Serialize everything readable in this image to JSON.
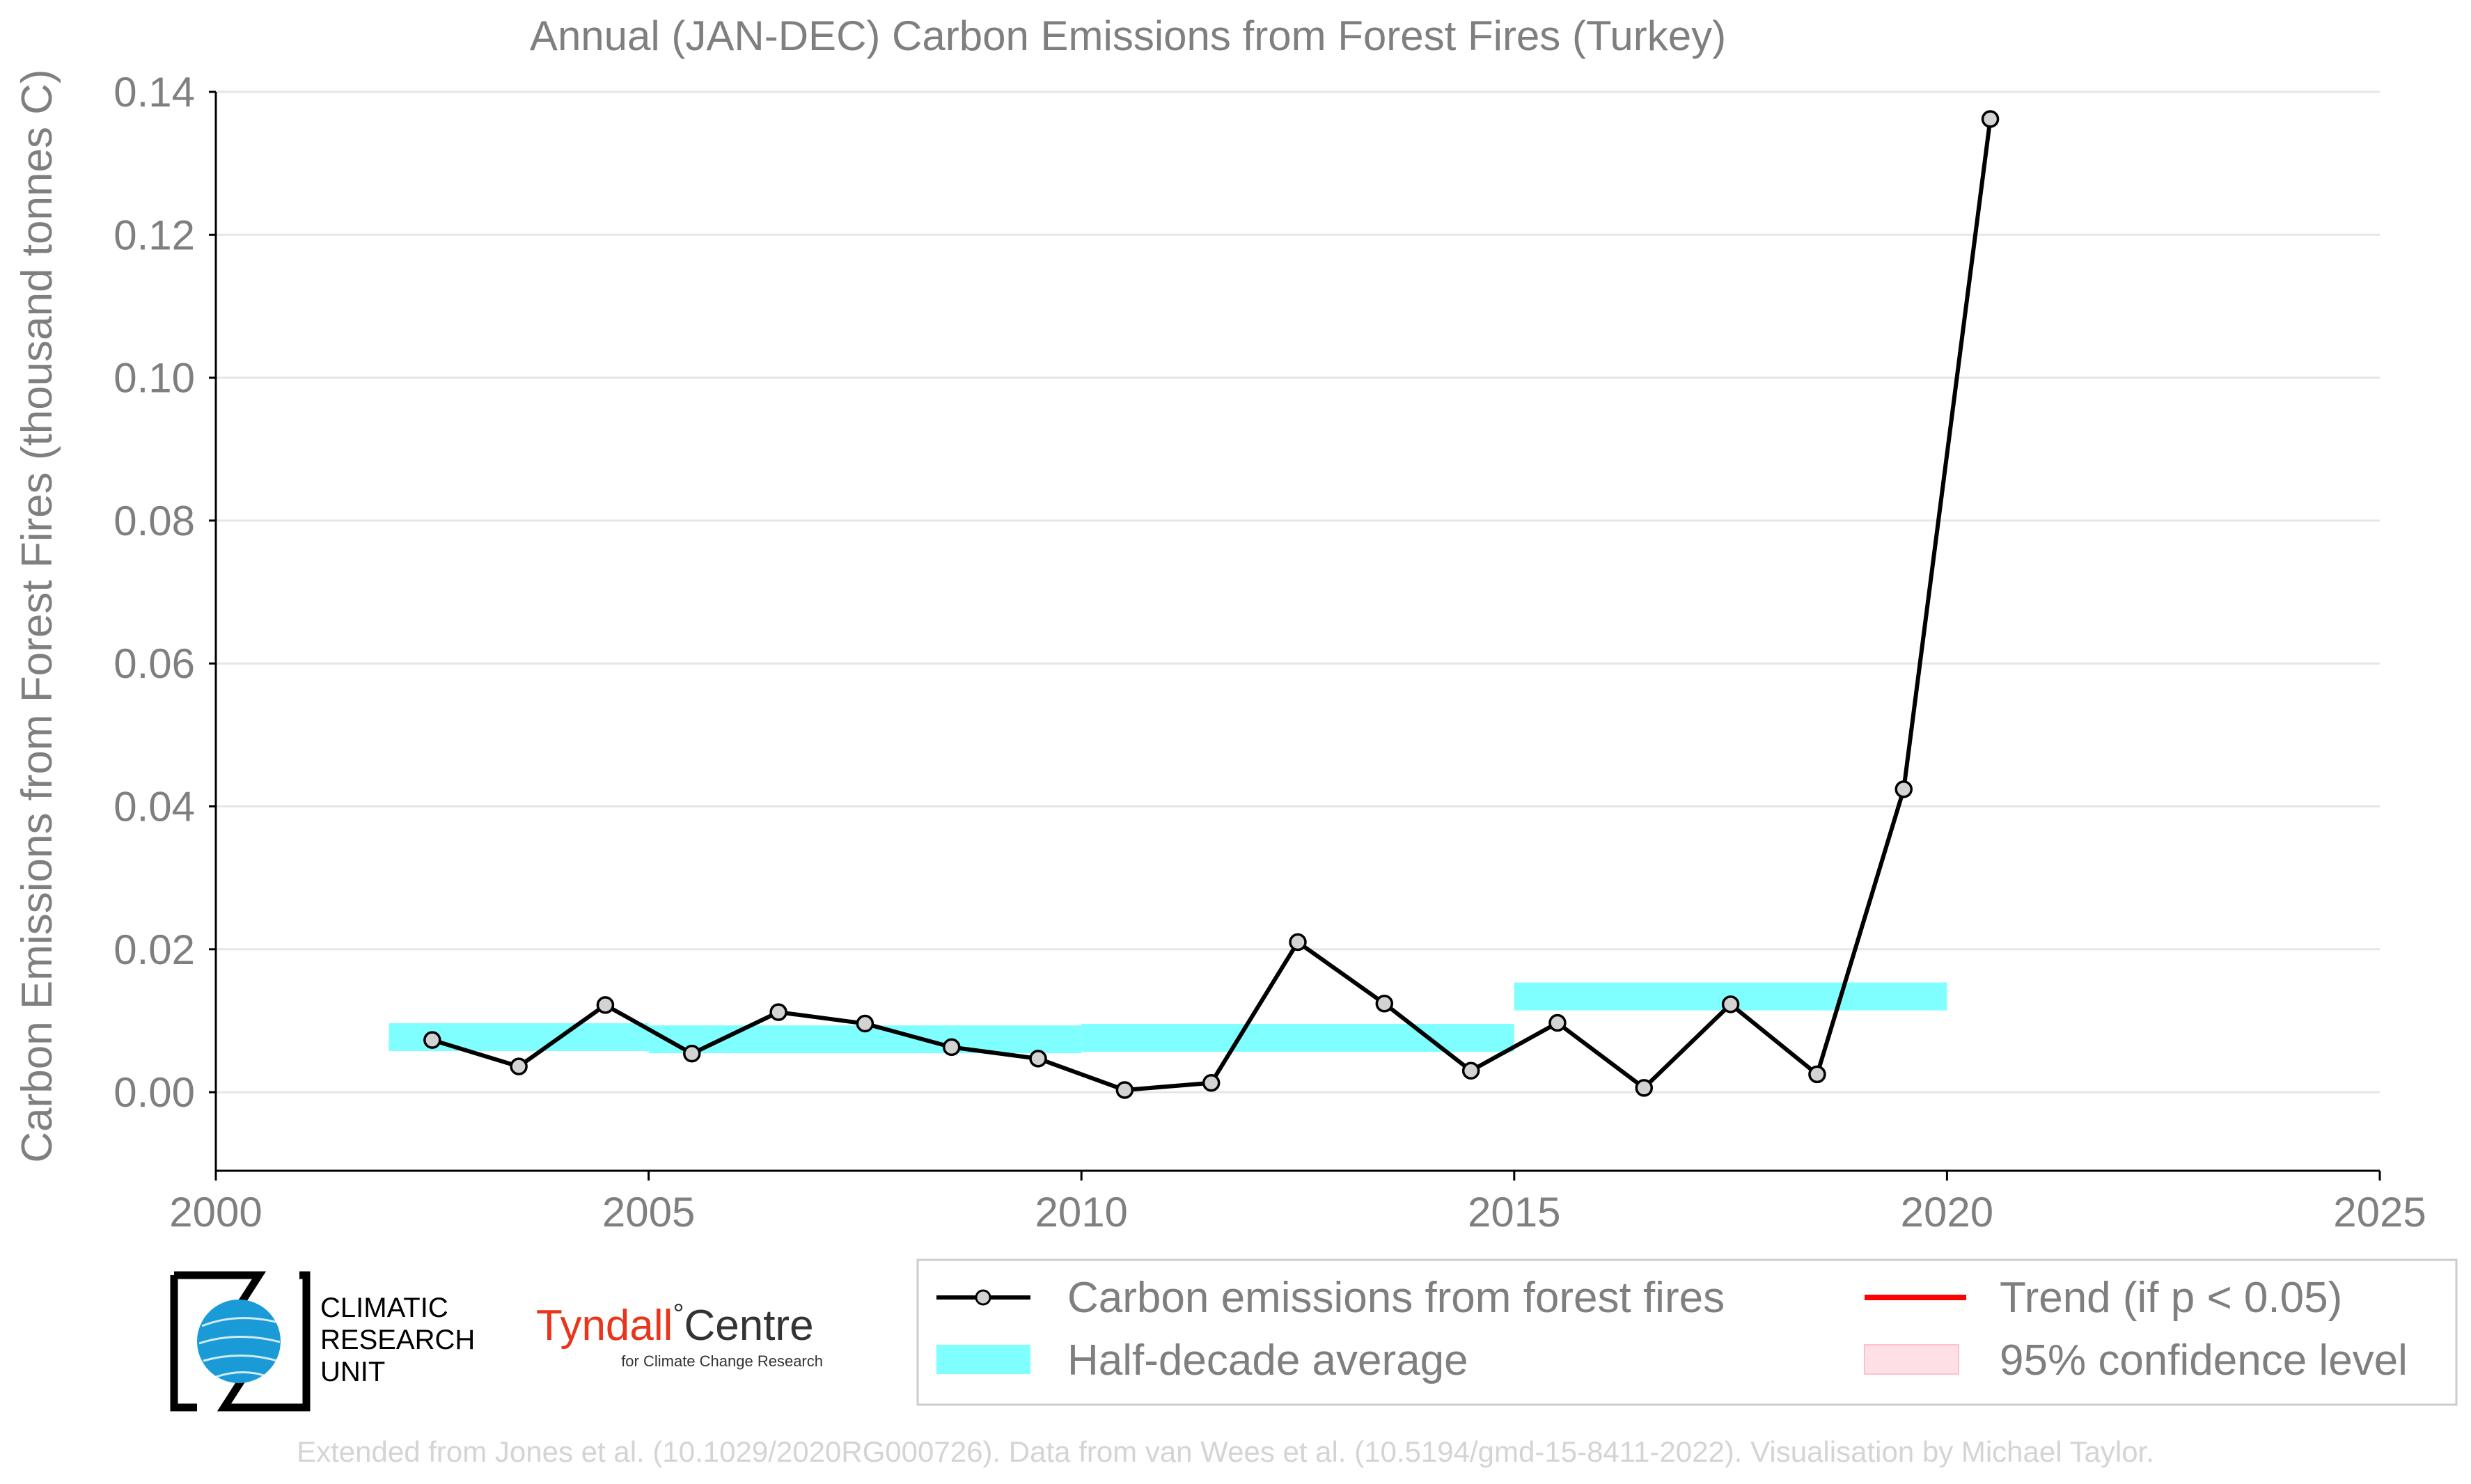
{
  "chart_data": {
    "type": "line",
    "title": "Annual (JAN-DEC) Carbon Emissions from Forest Fires (Turkey)",
    "ylabel": "Carbon Emissions from Forest Fires (thousand tonnes C)",
    "xlabel": "",
    "xlim": [
      2000,
      2025
    ],
    "ylim": [
      -0.011,
      0.14
    ],
    "x_ticks": [
      "2000",
      "2005",
      "2010",
      "2015",
      "2020",
      "2025"
    ],
    "y_ticks": [
      "0.00",
      "0.02",
      "0.04",
      "0.06",
      "0.08",
      "0.10",
      "0.12",
      "0.14"
    ],
    "grid": true,
    "series": [
      {
        "name": "Carbon emissions from forest fires",
        "color": "#000000",
        "marker_fill": "#d3d3d3",
        "x": [
          2002.5,
          2003.5,
          2004.5,
          2005.5,
          2006.5,
          2007.5,
          2008.5,
          2009.5,
          2010.5,
          2011.5,
          2012.5,
          2013.5,
          2014.5,
          2015.5,
          2016.5,
          2017.5,
          2018.5,
          2019.5,
          2020.5
        ],
        "values": [
          0.0073,
          0.0036,
          0.0122,
          0.0054,
          0.0112,
          0.0096,
          0.0063,
          0.0047,
          0.0003,
          0.0013,
          0.021,
          0.0124,
          0.003,
          0.0097,
          0.0006,
          0.0123,
          0.0025,
          0.0424,
          0.1362
        ]
      },
      {
        "name": "Half-decade average",
        "color": "#7fffff",
        "segments": [
          {
            "x0": 2002,
            "x1": 2005,
            "value": 0.0077
          },
          {
            "x0": 2005,
            "x1": 2010,
            "value": 0.0074
          },
          {
            "x0": 2010,
            "x1": 2015,
            "value": 0.0076
          },
          {
            "x0": 2015,
            "x1": 2020,
            "value": 0.0134
          }
        ]
      }
    ],
    "legend": {
      "placement": "bottom-right",
      "items": [
        {
          "key": "line",
          "label": "Carbon emissions from forest fires"
        },
        {
          "key": "trend",
          "label": "Trend (if p < 0.05)",
          "color": "#ff0000"
        },
        {
          "key": "avg",
          "label": "Half-decade average"
        },
        {
          "key": "ci",
          "label": "95% confidence level",
          "color": "#ffe0e6"
        }
      ]
    }
  },
  "logos": {
    "cru_lines": [
      "CLIMATIC",
      "RESEARCH",
      "UNIT"
    ],
    "tyndall_name": "Tyndall",
    "tyndall_degree": "°",
    "tyndall_centre": "Centre",
    "tyndall_sub": "for Climate Change Research",
    "tyndall_color": "#e8351c"
  },
  "credit": "Extended from Jones et al. (10.1029/2020RG000726). Data from van Wees et al. (10.5194/gmd-15-8411-2022). Visualisation by Michael Taylor."
}
